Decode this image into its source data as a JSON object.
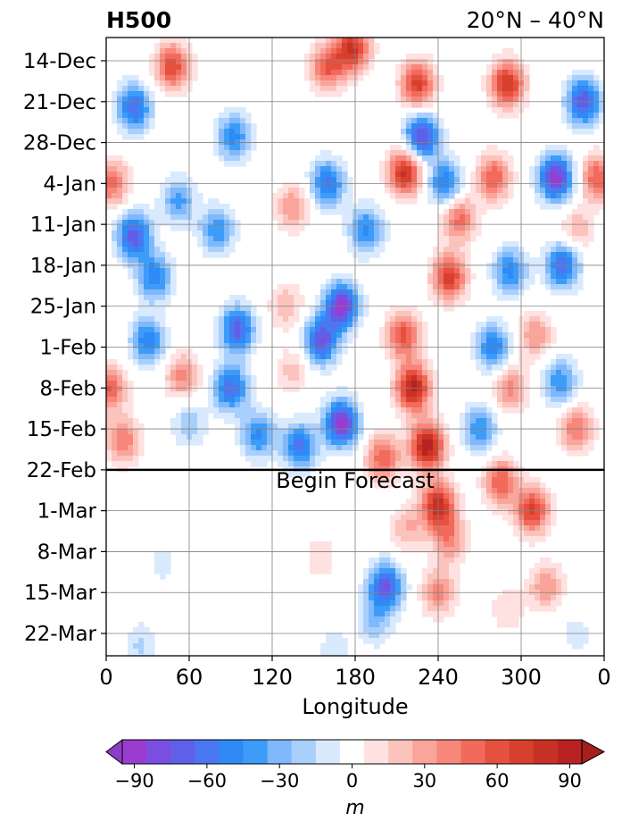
{
  "chart_data": {
    "type": "heatmap",
    "title": "H500",
    "subtitle": "20°N – 40°N",
    "xlabel": "Longitude",
    "ylabel": "",
    "x_ticks": [
      "0",
      "60",
      "120",
      "180",
      "240",
      "300",
      "0"
    ],
    "x_tick_values": [
      0,
      60,
      120,
      180,
      240,
      300,
      360
    ],
    "xlim": [
      0,
      360
    ],
    "y_ticks": [
      "14-Dec",
      "21-Dec",
      "28-Dec",
      "4-Jan",
      "11-Jan",
      "18-Jan",
      "25-Jan",
      "1-Feb",
      "8-Feb",
      "15-Feb",
      "22-Feb",
      "1-Mar",
      "8-Mar",
      "15-Mar",
      "22-Mar"
    ],
    "y_tick_dates": [
      "12-14",
      "12-21",
      "12-28",
      "01-04",
      "01-11",
      "01-18",
      "01-25",
      "02-01",
      "02-08",
      "02-15",
      "02-22",
      "03-01",
      "03-08",
      "03-15",
      "03-22"
    ],
    "ylim": [
      "10-Dec",
      "26-Mar"
    ],
    "grid": true,
    "annotation": {
      "text": "Begin Forecast",
      "date": "22-Feb"
    },
    "colorbar": {
      "label": "m",
      "ticks": [
        -90,
        -60,
        -30,
        0,
        30,
        60,
        90
      ],
      "tick_labels": [
        "−90",
        "−60",
        "−30",
        "0",
        "30",
        "60",
        "90"
      ],
      "levels": [
        -105,
        -90,
        -80,
        -70,
        -60,
        -50,
        -40,
        -30,
        -20,
        -10,
        10,
        20,
        30,
        40,
        50,
        60,
        70,
        80,
        90,
        105
      ],
      "colors": [
        "#9a3ccf",
        "#7a4ee0",
        "#5f5fe8",
        "#4a78f0",
        "#2f8af5",
        "#3d9cf8",
        "#7fb8fb",
        "#a9cffc",
        "#d9e9fe",
        "#ffffff",
        "#ffe1e1",
        "#fcc3bd",
        "#f9a59b",
        "#f6877a",
        "#f26a5b",
        "#e6513f",
        "#d8402e",
        "#c83226",
        "#b82222"
      ],
      "under_color": "#8b3ec8",
      "over_color": "#a51f1f",
      "extend": "both"
    },
    "anomaly_centers": [
      {
        "lon": 20,
        "date": "12-22",
        "value": -70
      },
      {
        "lon": 48,
        "date": "12-15",
        "value": 70
      },
      {
        "lon": 92,
        "date": "12-27",
        "value": -55
      },
      {
        "lon": 160,
        "date": "12-15",
        "value": 60
      },
      {
        "lon": 178,
        "date": "12-12",
        "value": 80
      },
      {
        "lon": 225,
        "date": "12-18",
        "value": 75
      },
      {
        "lon": 228,
        "date": "12-27",
        "value": -85
      },
      {
        "lon": 216,
        "date": "01-02",
        "value": 85
      },
      {
        "lon": 245,
        "date": "01-04",
        "value": -60
      },
      {
        "lon": 290,
        "date": "12-18",
        "value": 80
      },
      {
        "lon": 345,
        "date": "12-21",
        "value": -80
      },
      {
        "lon": 325,
        "date": "01-03",
        "value": -95
      },
      {
        "lon": 280,
        "date": "01-03",
        "value": 60
      },
      {
        "lon": 355,
        "date": "01-03",
        "value": 60
      },
      {
        "lon": 4,
        "date": "01-04",
        "value": 55
      },
      {
        "lon": 20,
        "date": "01-13",
        "value": -80
      },
      {
        "lon": 35,
        "date": "01-20",
        "value": -60
      },
      {
        "lon": 52,
        "date": "01-07",
        "value": -45
      },
      {
        "lon": 80,
        "date": "01-12",
        "value": -50
      },
      {
        "lon": 160,
        "date": "01-04",
        "value": -65
      },
      {
        "lon": 188,
        "date": "01-12",
        "value": -55
      },
      {
        "lon": 135,
        "date": "01-08",
        "value": 40
      },
      {
        "lon": 255,
        "date": "01-10",
        "value": 55
      },
      {
        "lon": 248,
        "date": "01-20",
        "value": 75
      },
      {
        "lon": 292,
        "date": "01-19",
        "value": -55
      },
      {
        "lon": 330,
        "date": "01-18",
        "value": -70
      },
      {
        "lon": 310,
        "date": "01-30",
        "value": 40
      },
      {
        "lon": 340,
        "date": "01-12",
        "value": 30
      },
      {
        "lon": 170,
        "date": "01-25",
        "value": -95
      },
      {
        "lon": 155,
        "date": "01-31",
        "value": -80
      },
      {
        "lon": 170,
        "date": "02-14",
        "value": -95
      },
      {
        "lon": 95,
        "date": "01-29",
        "value": -75
      },
      {
        "lon": 90,
        "date": "02-08",
        "value": -70
      },
      {
        "lon": 30,
        "date": "01-31",
        "value": -60
      },
      {
        "lon": 140,
        "date": "02-18",
        "value": -65
      },
      {
        "lon": 110,
        "date": "02-16",
        "value": -55
      },
      {
        "lon": 60,
        "date": "02-14",
        "value": -30
      },
      {
        "lon": 215,
        "date": "01-30",
        "value": 65
      },
      {
        "lon": 222,
        "date": "02-08",
        "value": 95
      },
      {
        "lon": 232,
        "date": "02-18",
        "value": 100
      },
      {
        "lon": 200,
        "date": "02-20",
        "value": 60
      },
      {
        "lon": 2,
        "date": "02-08",
        "value": 60
      },
      {
        "lon": 12,
        "date": "02-17",
        "value": 50
      },
      {
        "lon": 55,
        "date": "02-06",
        "value": 45
      },
      {
        "lon": 135,
        "date": "02-05",
        "value": 25
      },
      {
        "lon": 130,
        "date": "01-25",
        "value": 30
      },
      {
        "lon": 280,
        "date": "02-01",
        "value": -60
      },
      {
        "lon": 292,
        "date": "02-08",
        "value": 45
      },
      {
        "lon": 270,
        "date": "02-15",
        "value": -50
      },
      {
        "lon": 285,
        "date": "02-24",
        "value": 60
      },
      {
        "lon": 308,
        "date": "03-01",
        "value": 75
      },
      {
        "lon": 340,
        "date": "02-15",
        "value": 50
      },
      {
        "lon": 328,
        "date": "02-07",
        "value": -50
      },
      {
        "lon": 240,
        "date": "02-28",
        "value": 85
      },
      {
        "lon": 248,
        "date": "03-06",
        "value": 45
      },
      {
        "lon": 218,
        "date": "03-04",
        "value": 30
      },
      {
        "lon": 202,
        "date": "03-14",
        "value": -80
      },
      {
        "lon": 194,
        "date": "03-20",
        "value": -30
      },
      {
        "lon": 240,
        "date": "03-15",
        "value": 45
      },
      {
        "lon": 318,
        "date": "03-14",
        "value": 40
      },
      {
        "lon": 290,
        "date": "03-18",
        "value": 20
      },
      {
        "lon": 155,
        "date": "03-09",
        "value": 18
      },
      {
        "lon": 25,
        "date": "03-24",
        "value": -22
      },
      {
        "lon": 165,
        "date": "03-25",
        "value": -18
      },
      {
        "lon": 40,
        "date": "03-10",
        "value": -14
      },
      {
        "lon": 340,
        "date": "03-22",
        "value": -15
      }
    ]
  }
}
